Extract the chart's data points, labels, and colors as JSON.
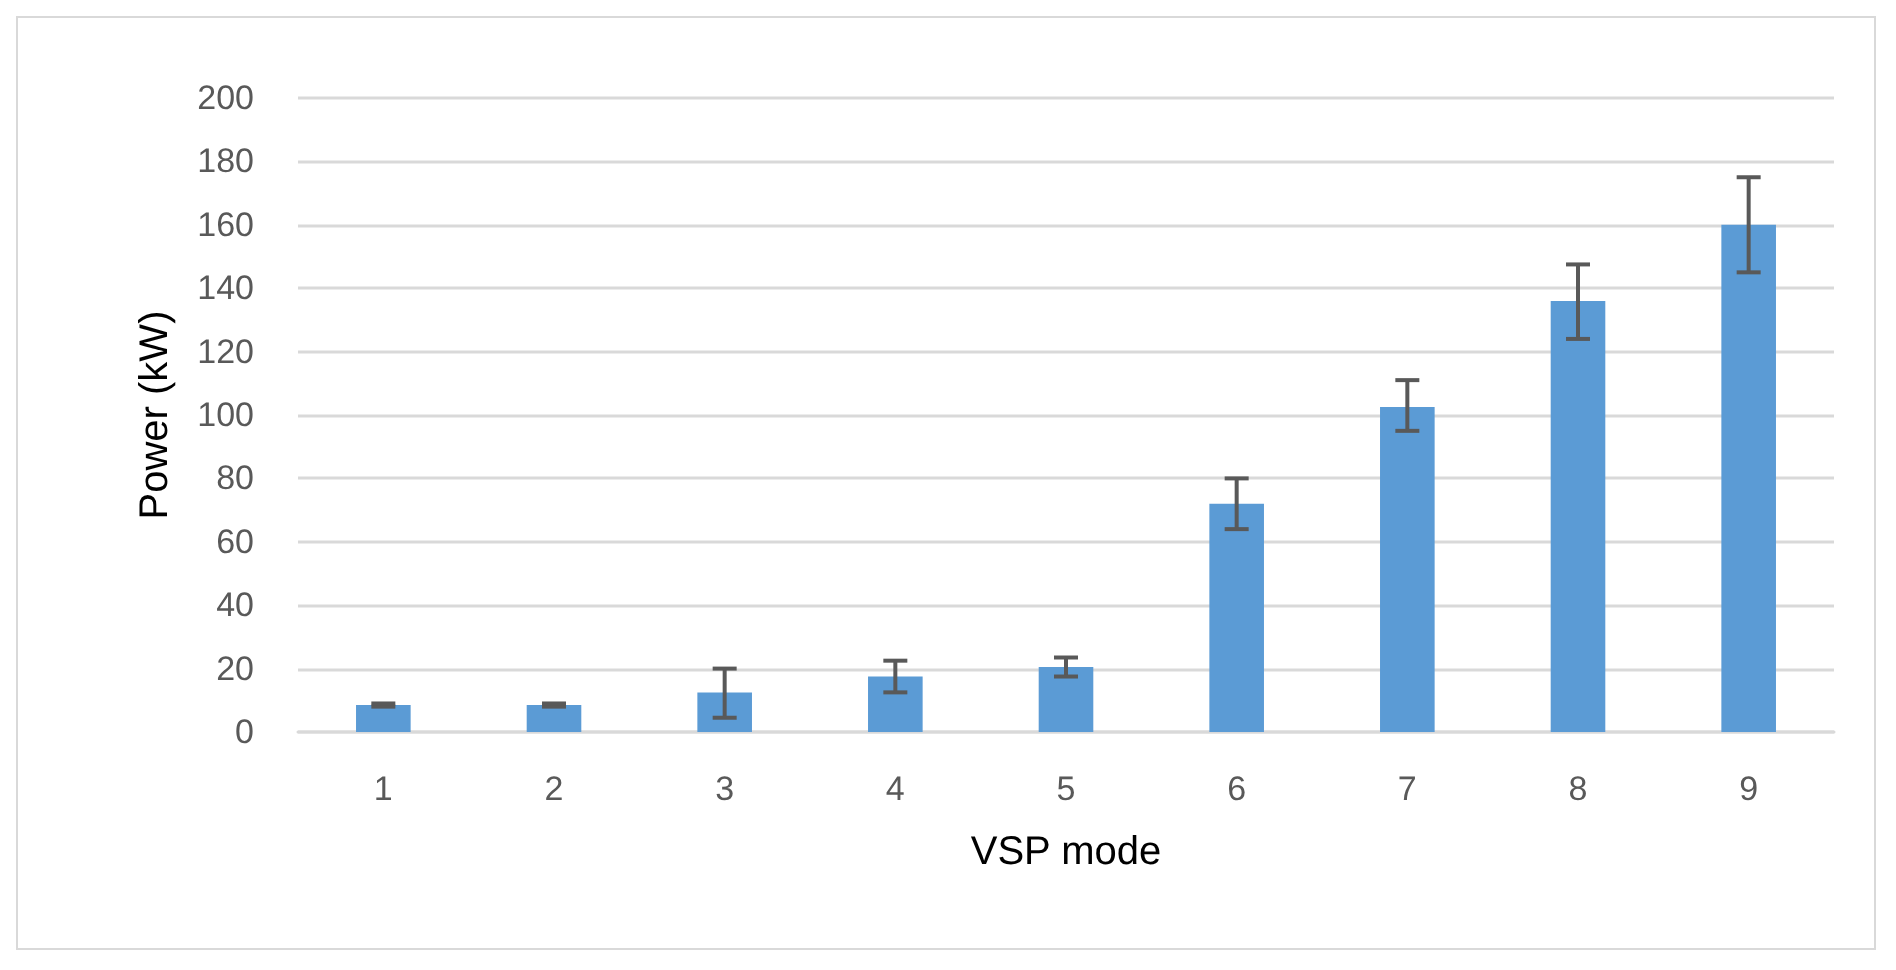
{
  "chart_data": {
    "type": "bar",
    "xlabel": "VSP mode",
    "ylabel": "Power (kW)",
    "categories": [
      "1",
      "2",
      "3",
      "4",
      "5",
      "6",
      "7",
      "8",
      "9"
    ],
    "values": [
      8.5,
      8.5,
      12.5,
      17.5,
      20.5,
      72,
      102.5,
      136,
      160
    ],
    "errors": [
      [
        8,
        9
      ],
      [
        8,
        9
      ],
      [
        4.5,
        20
      ],
      [
        12.5,
        22.5
      ],
      [
        17.5,
        23.5
      ],
      [
        64,
        80
      ],
      [
        95,
        111
      ],
      [
        124,
        147.5
      ],
      [
        145,
        175
      ]
    ],
    "color": "#5b9bd5",
    "ylim": [
      0,
      200
    ],
    "yticks": [
      0,
      20,
      40,
      60,
      80,
      100,
      120,
      140,
      160,
      180,
      200
    ],
    "grid": "y"
  }
}
